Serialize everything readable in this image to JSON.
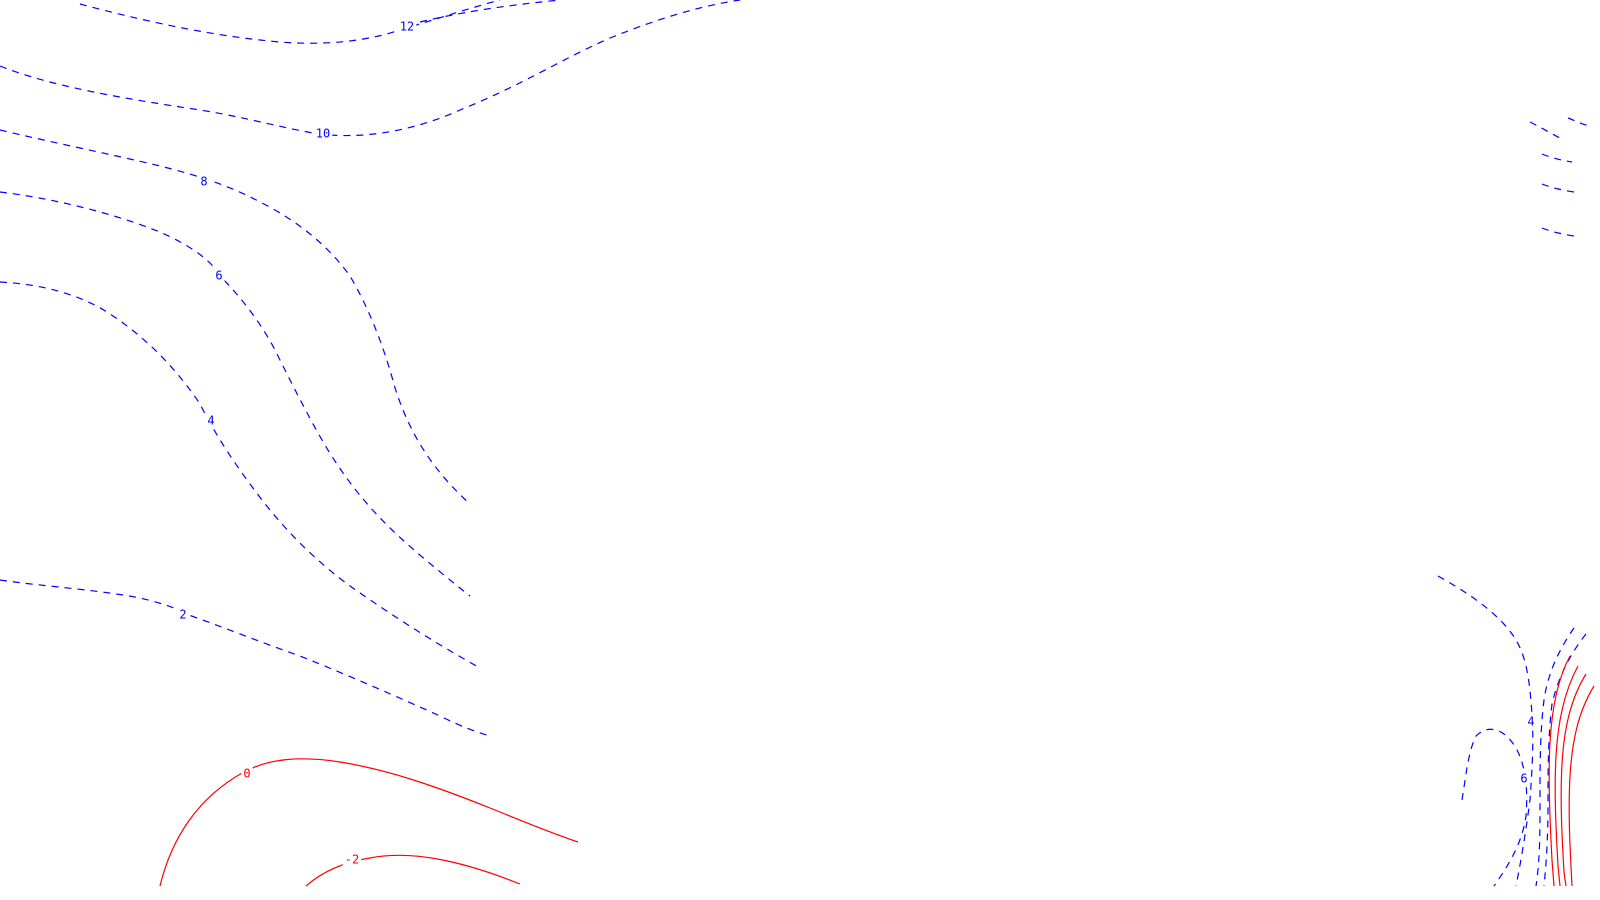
{
  "map": {
    "colors": {
      "positive": "#0000ff",
      "negative": "#ff0000",
      "background": "#ffffff"
    },
    "line_styles": {
      "positive": "dashed",
      "negative": "solid"
    },
    "contour_labels": [
      {
        "id": "label-pos-12",
        "text": "12",
        "sign": "positive"
      },
      {
        "id": "label-pos-10",
        "text": "10",
        "sign": "positive"
      },
      {
        "id": "label-pos-8",
        "text": "8",
        "sign": "positive"
      },
      {
        "id": "label-pos-6",
        "text": "6",
        "sign": "positive"
      },
      {
        "id": "label-pos-4",
        "text": "4",
        "sign": "positive"
      },
      {
        "id": "label-pos-2",
        "text": "2",
        "sign": "positive"
      },
      {
        "id": "label-zero",
        "text": "0",
        "sign": "negative"
      },
      {
        "id": "label-neg-2",
        "text": "-2",
        "sign": "negative"
      },
      {
        "id": "label-right-4",
        "text": "4",
        "sign": "positive"
      },
      {
        "id": "label-right-6",
        "text": "6",
        "sign": "positive"
      }
    ]
  }
}
